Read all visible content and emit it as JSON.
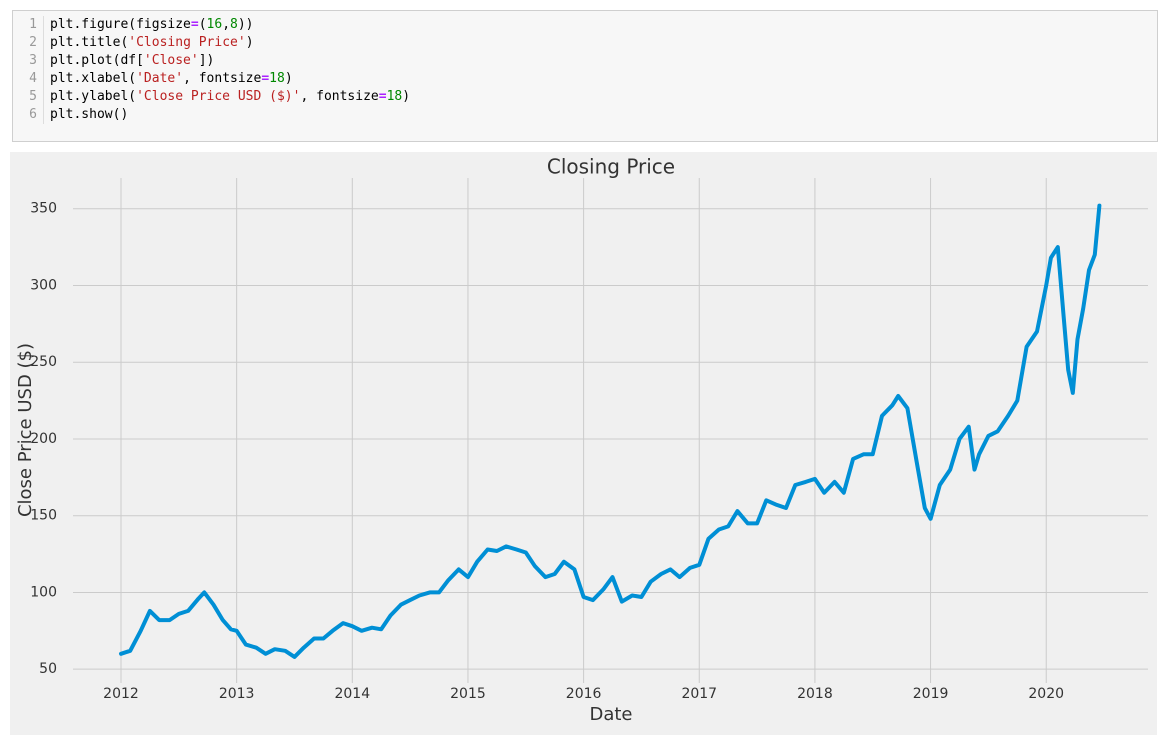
{
  "code": {
    "lines": [
      {
        "number": 1,
        "tokens": [
          {
            "text": "plt.figure(figsize",
            "kind": "p"
          },
          {
            "text": "=",
            "kind": "o"
          },
          {
            "text": "(",
            "kind": "p"
          },
          {
            "text": "16",
            "kind": "n"
          },
          {
            "text": ",",
            "kind": "p"
          },
          {
            "text": "8",
            "kind": "n"
          },
          {
            "text": "))",
            "kind": "p"
          }
        ]
      },
      {
        "number": 2,
        "tokens": [
          {
            "text": "plt.title(",
            "kind": "p"
          },
          {
            "text": "'Closing Price'",
            "kind": "s"
          },
          {
            "text": ")",
            "kind": "p"
          }
        ]
      },
      {
        "number": 3,
        "tokens": [
          {
            "text": "plt.plot(df[",
            "kind": "p"
          },
          {
            "text": "'Close'",
            "kind": "s"
          },
          {
            "text": "])",
            "kind": "p"
          }
        ]
      },
      {
        "number": 4,
        "tokens": [
          {
            "text": "plt.xlabel(",
            "kind": "p"
          },
          {
            "text": "'Date'",
            "kind": "s"
          },
          {
            "text": ", fontsize",
            "kind": "p"
          },
          {
            "text": "=",
            "kind": "o"
          },
          {
            "text": "18",
            "kind": "n"
          },
          {
            "text": ")",
            "kind": "p"
          }
        ]
      },
      {
        "number": 5,
        "tokens": [
          {
            "text": "plt.ylabel(",
            "kind": "p"
          },
          {
            "text": "'Close Price USD ($)'",
            "kind": "s"
          },
          {
            "text": ", fontsize",
            "kind": "p"
          },
          {
            "text": "=",
            "kind": "o"
          },
          {
            "text": "18",
            "kind": "n"
          },
          {
            "text": ")",
            "kind": "p"
          }
        ]
      },
      {
        "number": 6,
        "tokens": [
          {
            "text": "plt.show()",
            "kind": "p"
          }
        ]
      }
    ]
  },
  "chart_data": {
    "type": "line",
    "title": "Closing Price",
    "x_label": "Date",
    "y_label": "Close Price USD ($)",
    "color": "#008fd5",
    "grid": true,
    "x": [
      2012.0,
      2012.08,
      2012.17,
      2012.25,
      2012.33,
      2012.42,
      2012.5,
      2012.58,
      2012.67,
      2012.72,
      2012.8,
      2012.88,
      2012.95,
      2013.0,
      2013.08,
      2013.17,
      2013.25,
      2013.33,
      2013.42,
      2013.5,
      2013.58,
      2013.67,
      2013.75,
      2013.83,
      2013.92,
      2014.0,
      2014.08,
      2014.17,
      2014.25,
      2014.33,
      2014.42,
      2014.5,
      2014.58,
      2014.67,
      2014.75,
      2014.83,
      2014.92,
      2015.0,
      2015.08,
      2015.17,
      2015.25,
      2015.33,
      2015.42,
      2015.5,
      2015.58,
      2015.67,
      2015.75,
      2015.83,
      2015.92,
      2016.0,
      2016.08,
      2016.17,
      2016.25,
      2016.33,
      2016.42,
      2016.5,
      2016.58,
      2016.67,
      2016.75,
      2016.83,
      2016.92,
      2017.0,
      2017.08,
      2017.17,
      2017.25,
      2017.33,
      2017.42,
      2017.5,
      2017.58,
      2017.67,
      2017.75,
      2017.83,
      2017.92,
      2018.0,
      2018.08,
      2018.17,
      2018.25,
      2018.33,
      2018.42,
      2018.5,
      2018.58,
      2018.67,
      2018.72,
      2018.8,
      2018.88,
      2018.95,
      2019.0,
      2019.08,
      2019.17,
      2019.25,
      2019.33,
      2019.38,
      2019.42,
      2019.5,
      2019.58,
      2019.67,
      2019.75,
      2019.83,
      2019.92,
      2020.0,
      2020.04,
      2020.1,
      2020.15,
      2020.19,
      2020.23,
      2020.27,
      2020.32,
      2020.37,
      2020.42,
      2020.46
    ],
    "values": [
      60,
      62,
      75,
      88,
      82,
      82,
      86,
      88,
      96,
      100,
      92,
      82,
      76,
      75,
      66,
      64,
      60,
      63,
      62,
      58,
      64,
      70,
      70,
      75,
      80,
      78,
      75,
      77,
      76,
      85,
      92,
      95,
      98,
      100,
      100,
      108,
      115,
      110,
      120,
      128,
      127,
      130,
      128,
      126,
      117,
      110,
      112,
      120,
      115,
      97,
      95,
      102,
      110,
      94,
      98,
      97,
      107,
      112,
      115,
      110,
      116,
      118,
      135,
      141,
      143,
      153,
      145,
      145,
      160,
      157,
      155,
      170,
      172,
      174,
      165,
      172,
      165,
      187,
      190,
      190,
      215,
      222,
      228,
      220,
      185,
      155,
      148,
      170,
      180,
      200,
      208,
      180,
      190,
      202,
      205,
      215,
      225,
      260,
      270,
      300,
      318,
      325,
      280,
      245,
      230,
      265,
      285,
      310,
      320,
      352
    ],
    "xlim": [
      2011.585,
      2020.88
    ],
    "xticks": [
      2012,
      2013,
      2014,
      2015,
      2016,
      2017,
      2018,
      2019,
      2020
    ],
    "ylim": [
      41,
      370
    ],
    "yticks": [
      50,
      100,
      150,
      200,
      250,
      300,
      350
    ]
  }
}
